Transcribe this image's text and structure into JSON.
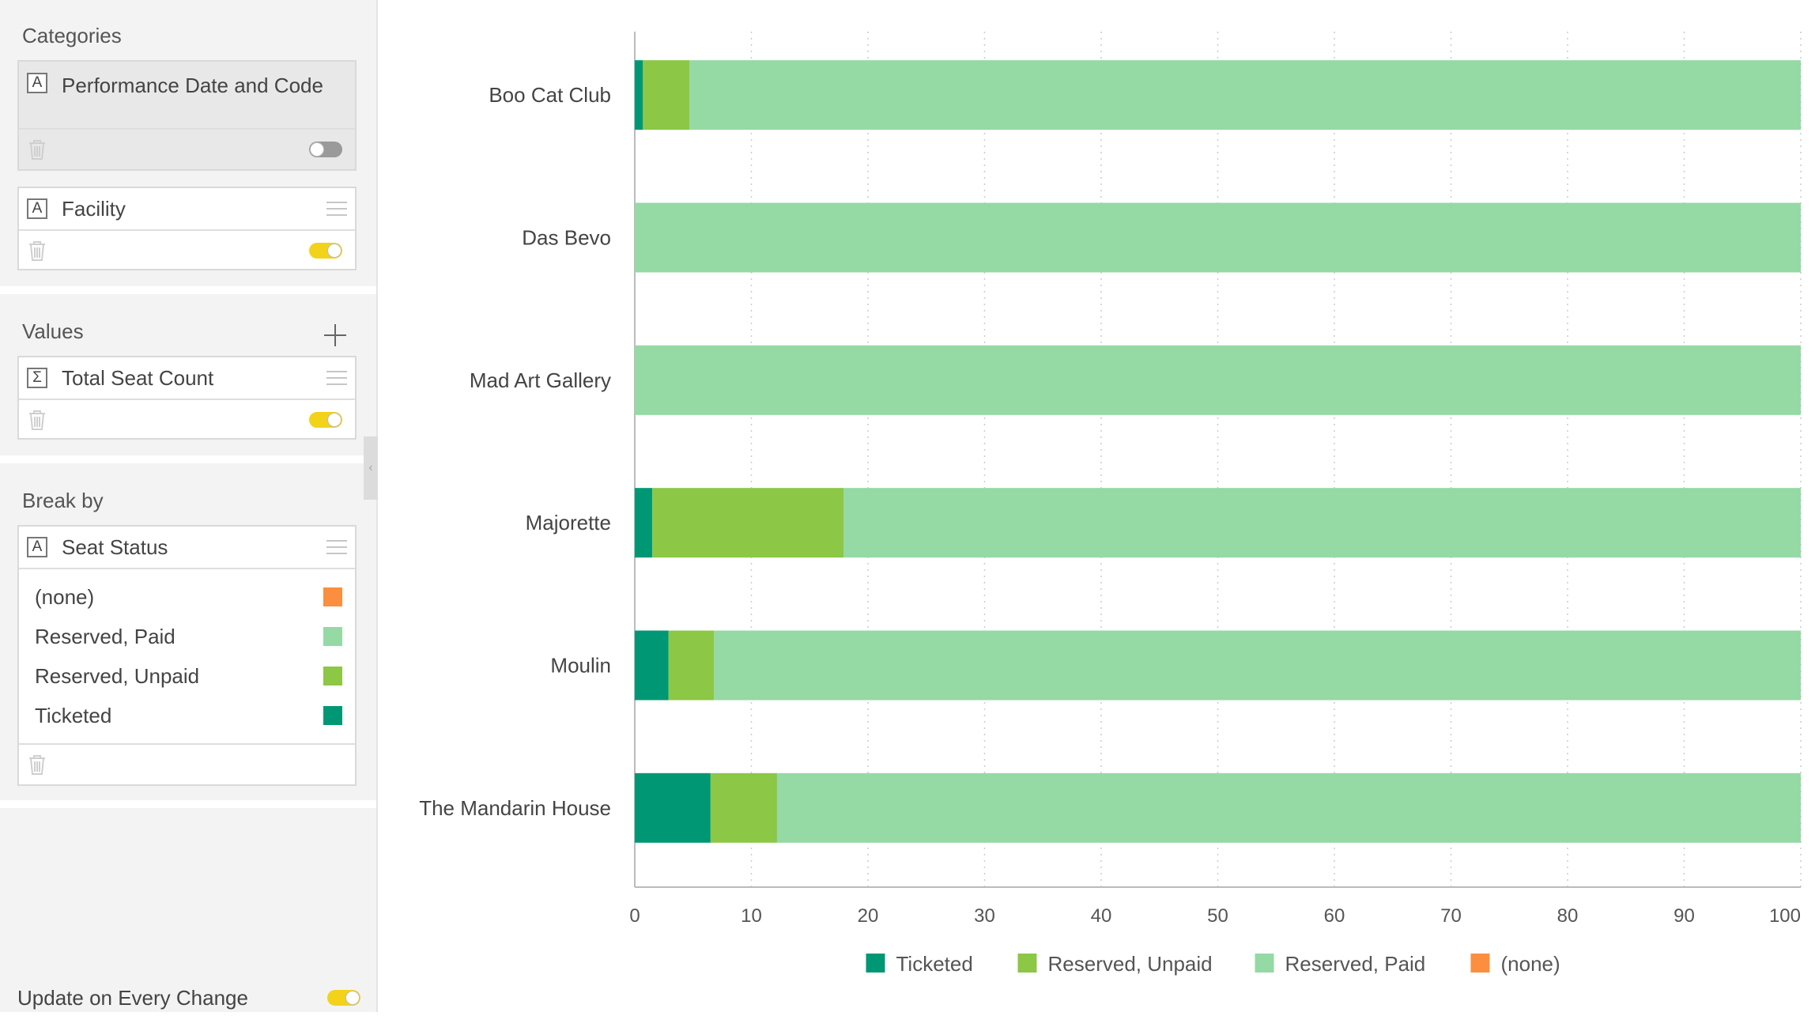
{
  "sidebar": {
    "categories": {
      "title": "Categories",
      "items": [
        {
          "badge": "A",
          "label": "Performance Date and Code",
          "toggle_on": false
        },
        {
          "badge": "A",
          "label": "Facility",
          "toggle_on": true
        }
      ]
    },
    "values": {
      "title": "Values",
      "items": [
        {
          "badge": "Σ",
          "label": "Total Seat Count",
          "toggle_on": true
        }
      ]
    },
    "break_by": {
      "title": "Break by",
      "field": {
        "badge": "A",
        "label": "Seat Status"
      },
      "legend": [
        {
          "label": "(none)",
          "color": "#fb8f3f"
        },
        {
          "label": "Reserved, Paid",
          "color": "#95d9a5"
        },
        {
          "label": "Reserved, Unpaid",
          "color": "#8cc745"
        },
        {
          "label": "Ticketed",
          "color": "#009874"
        }
      ]
    },
    "update": {
      "label": "Update on Every Change",
      "toggle_on": true
    }
  },
  "chart_data": {
    "type": "bar",
    "orientation": "horizontal",
    "stacked": true,
    "categories": [
      "Boo Cat Club",
      "Das Bevo",
      "Mad Art Gallery",
      "Majorette",
      "Moulin",
      "The Mandarin House"
    ],
    "series": [
      {
        "name": "Ticketed",
        "color": "#009874",
        "values": [
          0.7,
          0,
          0,
          1.5,
          2.9,
          6.5
        ]
      },
      {
        "name": "Reserved, Unpaid",
        "color": "#8cc745",
        "values": [
          4.0,
          0,
          0,
          16.4,
          3.9,
          5.7
        ]
      },
      {
        "name": "Reserved, Paid",
        "color": "#95d9a5",
        "values": [
          95.3,
          100,
          100,
          82.1,
          93.2,
          87.8
        ]
      },
      {
        "name": "(none)",
        "color": "#fb8f3f",
        "values": [
          0,
          0,
          0,
          0,
          0,
          0
        ]
      }
    ],
    "xlim": [
      0,
      100
    ],
    "xticks": [
      0,
      10,
      20,
      30,
      40,
      50,
      60,
      70,
      80,
      90,
      100
    ],
    "grid": "vertical-dotted",
    "legend": "bottom-center"
  }
}
